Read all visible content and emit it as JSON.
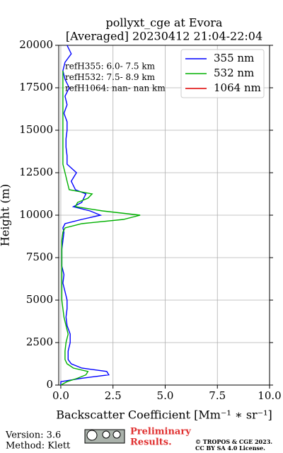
{
  "chart_data": {
    "type": "profile",
    "title": "pollyxt_cge at Evora",
    "subtitle": "[Averaged] 20230412 21:04-22:04",
    "x_label": "Backscatter Coefficient [Mm⁻¹ ∗ sr⁻¹]",
    "y_label": "Height (m)",
    "xlim": [
      -0.1,
      10
    ],
    "ylim": [
      0,
      20000
    ],
    "xticks": [
      {
        "value": 0,
        "label": "0.0"
      },
      2.5,
      {
        "value": 5,
        "label": "5.0"
      },
      7.5,
      {
        "value": 10,
        "label": "10.0"
      }
    ],
    "yticks": [
      0,
      2500,
      5000,
      7500,
      10000,
      12500,
      15000,
      17500,
      20000
    ],
    "grid": true,
    "legend": "upper right",
    "heights": [
      0,
      200,
      400,
      600,
      800,
      1000,
      1250,
      1500,
      2000,
      2500,
      3000,
      3500,
      4000,
      4500,
      5000,
      5500,
      6000,
      6500,
      7000,
      7500,
      8000,
      8500,
      9000,
      9250,
      9500,
      9750,
      10000,
      10250,
      10500,
      10750,
      11000,
      11250,
      11500,
      12000,
      12500,
      13000,
      13500,
      14000,
      14500,
      15000,
      15500,
      16000,
      16500,
      17000,
      17500,
      18000,
      18500,
      19000,
      19500,
      20000
    ],
    "series": [
      {
        "name": "355 nm",
        "color": "#0000ff",
        "values": [
          0.0,
          0.0,
          1.0,
          2.3,
          2.2,
          1.0,
          0.5,
          0.35,
          0.35,
          0.45,
          0.45,
          0.3,
          0.25,
          0.3,
          0.3,
          0.2,
          0.1,
          0.15,
          0.05,
          0.05,
          0.05,
          0.1,
          0.15,
          0.1,
          0.2,
          1.0,
          1.9,
          1.4,
          0.6,
          1.0,
          1.1,
          1.2,
          0.7,
          0.5,
          0.75,
          0.3,
          0.3,
          0.25,
          0.25,
          0.3,
          0.3,
          0.15,
          0.3,
          0.2,
          0.4,
          0.2,
          0.1,
          0.2,
          0.5,
          0.3
        ]
      },
      {
        "name": "532 nm",
        "color": "#00b000",
        "values": [
          0.0,
          0.3,
          0.8,
          1.2,
          1.3,
          0.6,
          0.3,
          0.2,
          0.2,
          0.25,
          0.35,
          0.25,
          0.15,
          0.1,
          0.05,
          0.05,
          0.05,
          0.05,
          0.05,
          0.05,
          0.05,
          0.05,
          0.1,
          0.2,
          1.0,
          3.0,
          3.8,
          2.0,
          0.7,
          0.8,
          1.3,
          1.5,
          0.4,
          0.3,
          0.2,
          0.1,
          0.1,
          0.1,
          0.1,
          0.1,
          0.1,
          0.1,
          0.1,
          0.1,
          0.1,
          0.1,
          0.1,
          null,
          null,
          null
        ]
      },
      {
        "name": "1064 nm",
        "color": "#e00000",
        "values": [
          null,
          null,
          null,
          null,
          null,
          null,
          null,
          null,
          null,
          null,
          null,
          null,
          null,
          null,
          null,
          null,
          null,
          null,
          null,
          null,
          null,
          null,
          null,
          null,
          null,
          null,
          null,
          null,
          null,
          null,
          null,
          null,
          null,
          null,
          null,
          null,
          null,
          null,
          null,
          null,
          null,
          null,
          null,
          null,
          null,
          null,
          null,
          null,
          null,
          null
        ]
      }
    ],
    "annotations": [
      "refH355:  6.0- 7.5 km",
      "refH532:  7.5- 8.9 km",
      "refH1064:  nan- nan km"
    ]
  },
  "footer": {
    "version": "Version: 3.6",
    "method": "Method: Klett",
    "preliminary": [
      "Preliminary",
      "Results."
    ],
    "license": [
      "© TROPOS & CGE 2023.",
      "CC BY SA 4.0 License."
    ]
  }
}
